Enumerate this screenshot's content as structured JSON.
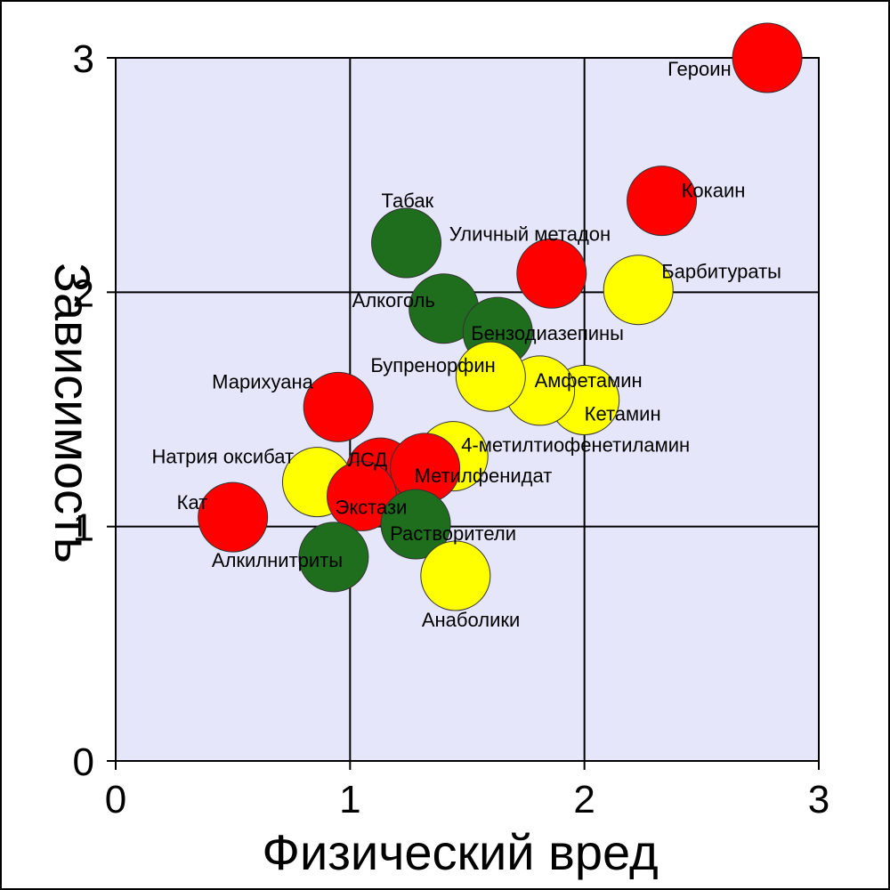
{
  "chart_data": {
    "type": "scatter",
    "title": "",
    "xlabel": "Физический вред",
    "ylabel": "Зависимость",
    "xlim": [
      0,
      3
    ],
    "ylim": [
      0,
      3
    ],
    "xticks": [
      "0",
      "1",
      "2",
      "3"
    ],
    "yticks": [
      "0",
      "1",
      "2",
      "3"
    ],
    "grid": true,
    "plot_background": "#e6e6fa",
    "colors": {
      "red": "#ff0000",
      "yellow": "#ffff00",
      "green": "#1e6e1e"
    },
    "points": [
      {
        "label": "Героин",
        "x": 2.78,
        "y": 3.0,
        "color": "red"
      },
      {
        "label": "Кокаин",
        "x": 2.33,
        "y": 2.39,
        "color": "red"
      },
      {
        "label": "Барбитураты",
        "x": 2.23,
        "y": 2.01,
        "color": "yellow"
      },
      {
        "label": "Уличный метадон",
        "x": 1.86,
        "y": 2.08,
        "color": "red"
      },
      {
        "label": "Табак",
        "x": 1.24,
        "y": 2.21,
        "color": "green"
      },
      {
        "label": "Алкоголь",
        "x": 1.4,
        "y": 1.93,
        "color": "green"
      },
      {
        "label": "Бензодиазепины",
        "x": 1.63,
        "y": 1.83,
        "color": "green"
      },
      {
        "label": "Кетамин",
        "x": 2.0,
        "y": 1.54,
        "color": "yellow"
      },
      {
        "label": "Амфетамин",
        "x": 1.81,
        "y": 1.58,
        "color": "yellow"
      },
      {
        "label": "Бупренорфин",
        "x": 1.6,
        "y": 1.64,
        "color": "yellow"
      },
      {
        "label": "4-метилтиофенетиламин",
        "x": 1.44,
        "y": 1.3,
        "color": "yellow"
      },
      {
        "label": "Марихуана",
        "x": 0.95,
        "y": 1.51,
        "color": "red"
      },
      {
        "label": "Натрия оксибат",
        "x": 0.86,
        "y": 1.19,
        "color": "yellow"
      },
      {
        "label": "ЛСД",
        "x": 1.13,
        "y": 1.23,
        "color": "red"
      },
      {
        "label": "Метилфенидат",
        "x": 1.32,
        "y": 1.25,
        "color": "red"
      },
      {
        "label": "Экстази",
        "x": 1.05,
        "y": 1.13,
        "color": "red"
      },
      {
        "label": "Растворители",
        "x": 1.28,
        "y": 1.01,
        "color": "green"
      },
      {
        "label": "Кат",
        "x": 0.5,
        "y": 1.04,
        "color": "red"
      },
      {
        "label": "Алкилнитриты",
        "x": 0.93,
        "y": 0.87,
        "color": "green"
      },
      {
        "label": "Анаболики",
        "x": 1.45,
        "y": 0.79,
        "color": "yellow"
      }
    ]
  }
}
